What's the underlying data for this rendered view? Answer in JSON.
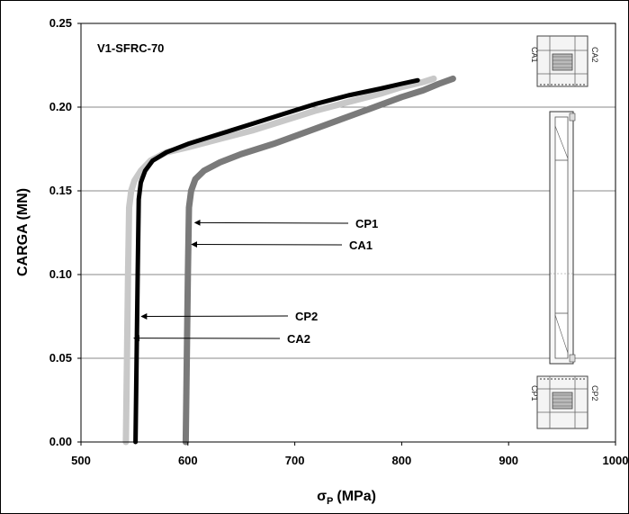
{
  "chart_data": {
    "type": "line",
    "title": "V1-SFRC-70",
    "xlabel": "σ",
    "xlabel_sub": "P",
    "xlabel_unit": "(MPa)",
    "ylabel": "CARGA (MN)",
    "xlim": [
      500,
      1000
    ],
    "ylim": [
      0,
      0.25
    ],
    "x_ticks": [
      "500",
      "600",
      "700",
      "800",
      "900",
      "1000"
    ],
    "y_ticks": [
      "0.00",
      "0.05",
      "0.10",
      "0.15",
      "0.20",
      "0.25"
    ],
    "grid": "horizontal",
    "series": [
      {
        "name": "CP1",
        "color": "#c8c8c8",
        "x": [
          542,
          543,
          544,
          545,
          547,
          550,
          556,
          565,
          580,
          600,
          630,
          660,
          690,
          720,
          750,
          780,
          800,
          820,
          830
        ],
        "y": [
          0,
          0.05,
          0.1,
          0.14,
          0.15,
          0.156,
          0.162,
          0.168,
          0.173,
          0.176,
          0.181,
          0.186,
          0.192,
          0.198,
          0.203,
          0.208,
          0.212,
          0.215,
          0.217
        ]
      },
      {
        "name": "CA1",
        "color": "#7a7a7a",
        "x": [
          598,
          599,
          600,
          601,
          603,
          607,
          615,
          630,
          650,
          680,
          710,
          740,
          770,
          800,
          820,
          835,
          848
        ],
        "y": [
          0,
          0.05,
          0.1,
          0.14,
          0.15,
          0.157,
          0.162,
          0.167,
          0.172,
          0.178,
          0.185,
          0.192,
          0.199,
          0.206,
          0.21,
          0.214,
          0.217
        ]
      },
      {
        "name": "CP2",
        "color": "#000000",
        "x": [
          551,
          552,
          553,
          554,
          556,
          560,
          567,
          580,
          600,
          630,
          660,
          690,
          720,
          750,
          780,
          800,
          815
        ],
        "y": [
          0,
          0.05,
          0.1,
          0.145,
          0.155,
          0.162,
          0.168,
          0.173,
          0.178,
          0.184,
          0.19,
          0.196,
          0.202,
          0.207,
          0.211,
          0.214,
          0.216
        ]
      }
    ],
    "annotations": [
      {
        "label": "CP1",
        "target": [
          605,
          0.131
        ]
      },
      {
        "label": "CA1",
        "target": [
          602,
          0.118
        ]
      },
      {
        "label": "CP2",
        "target": [
          555,
          0.075
        ]
      },
      {
        "label": "CA2",
        "target": [
          548,
          0.062
        ]
      }
    ]
  },
  "inset": {
    "top_left_label": "CA1",
    "top_right_label": "CA2",
    "bottom_left_label": "CP1",
    "bottom_right_label": "CP2"
  }
}
